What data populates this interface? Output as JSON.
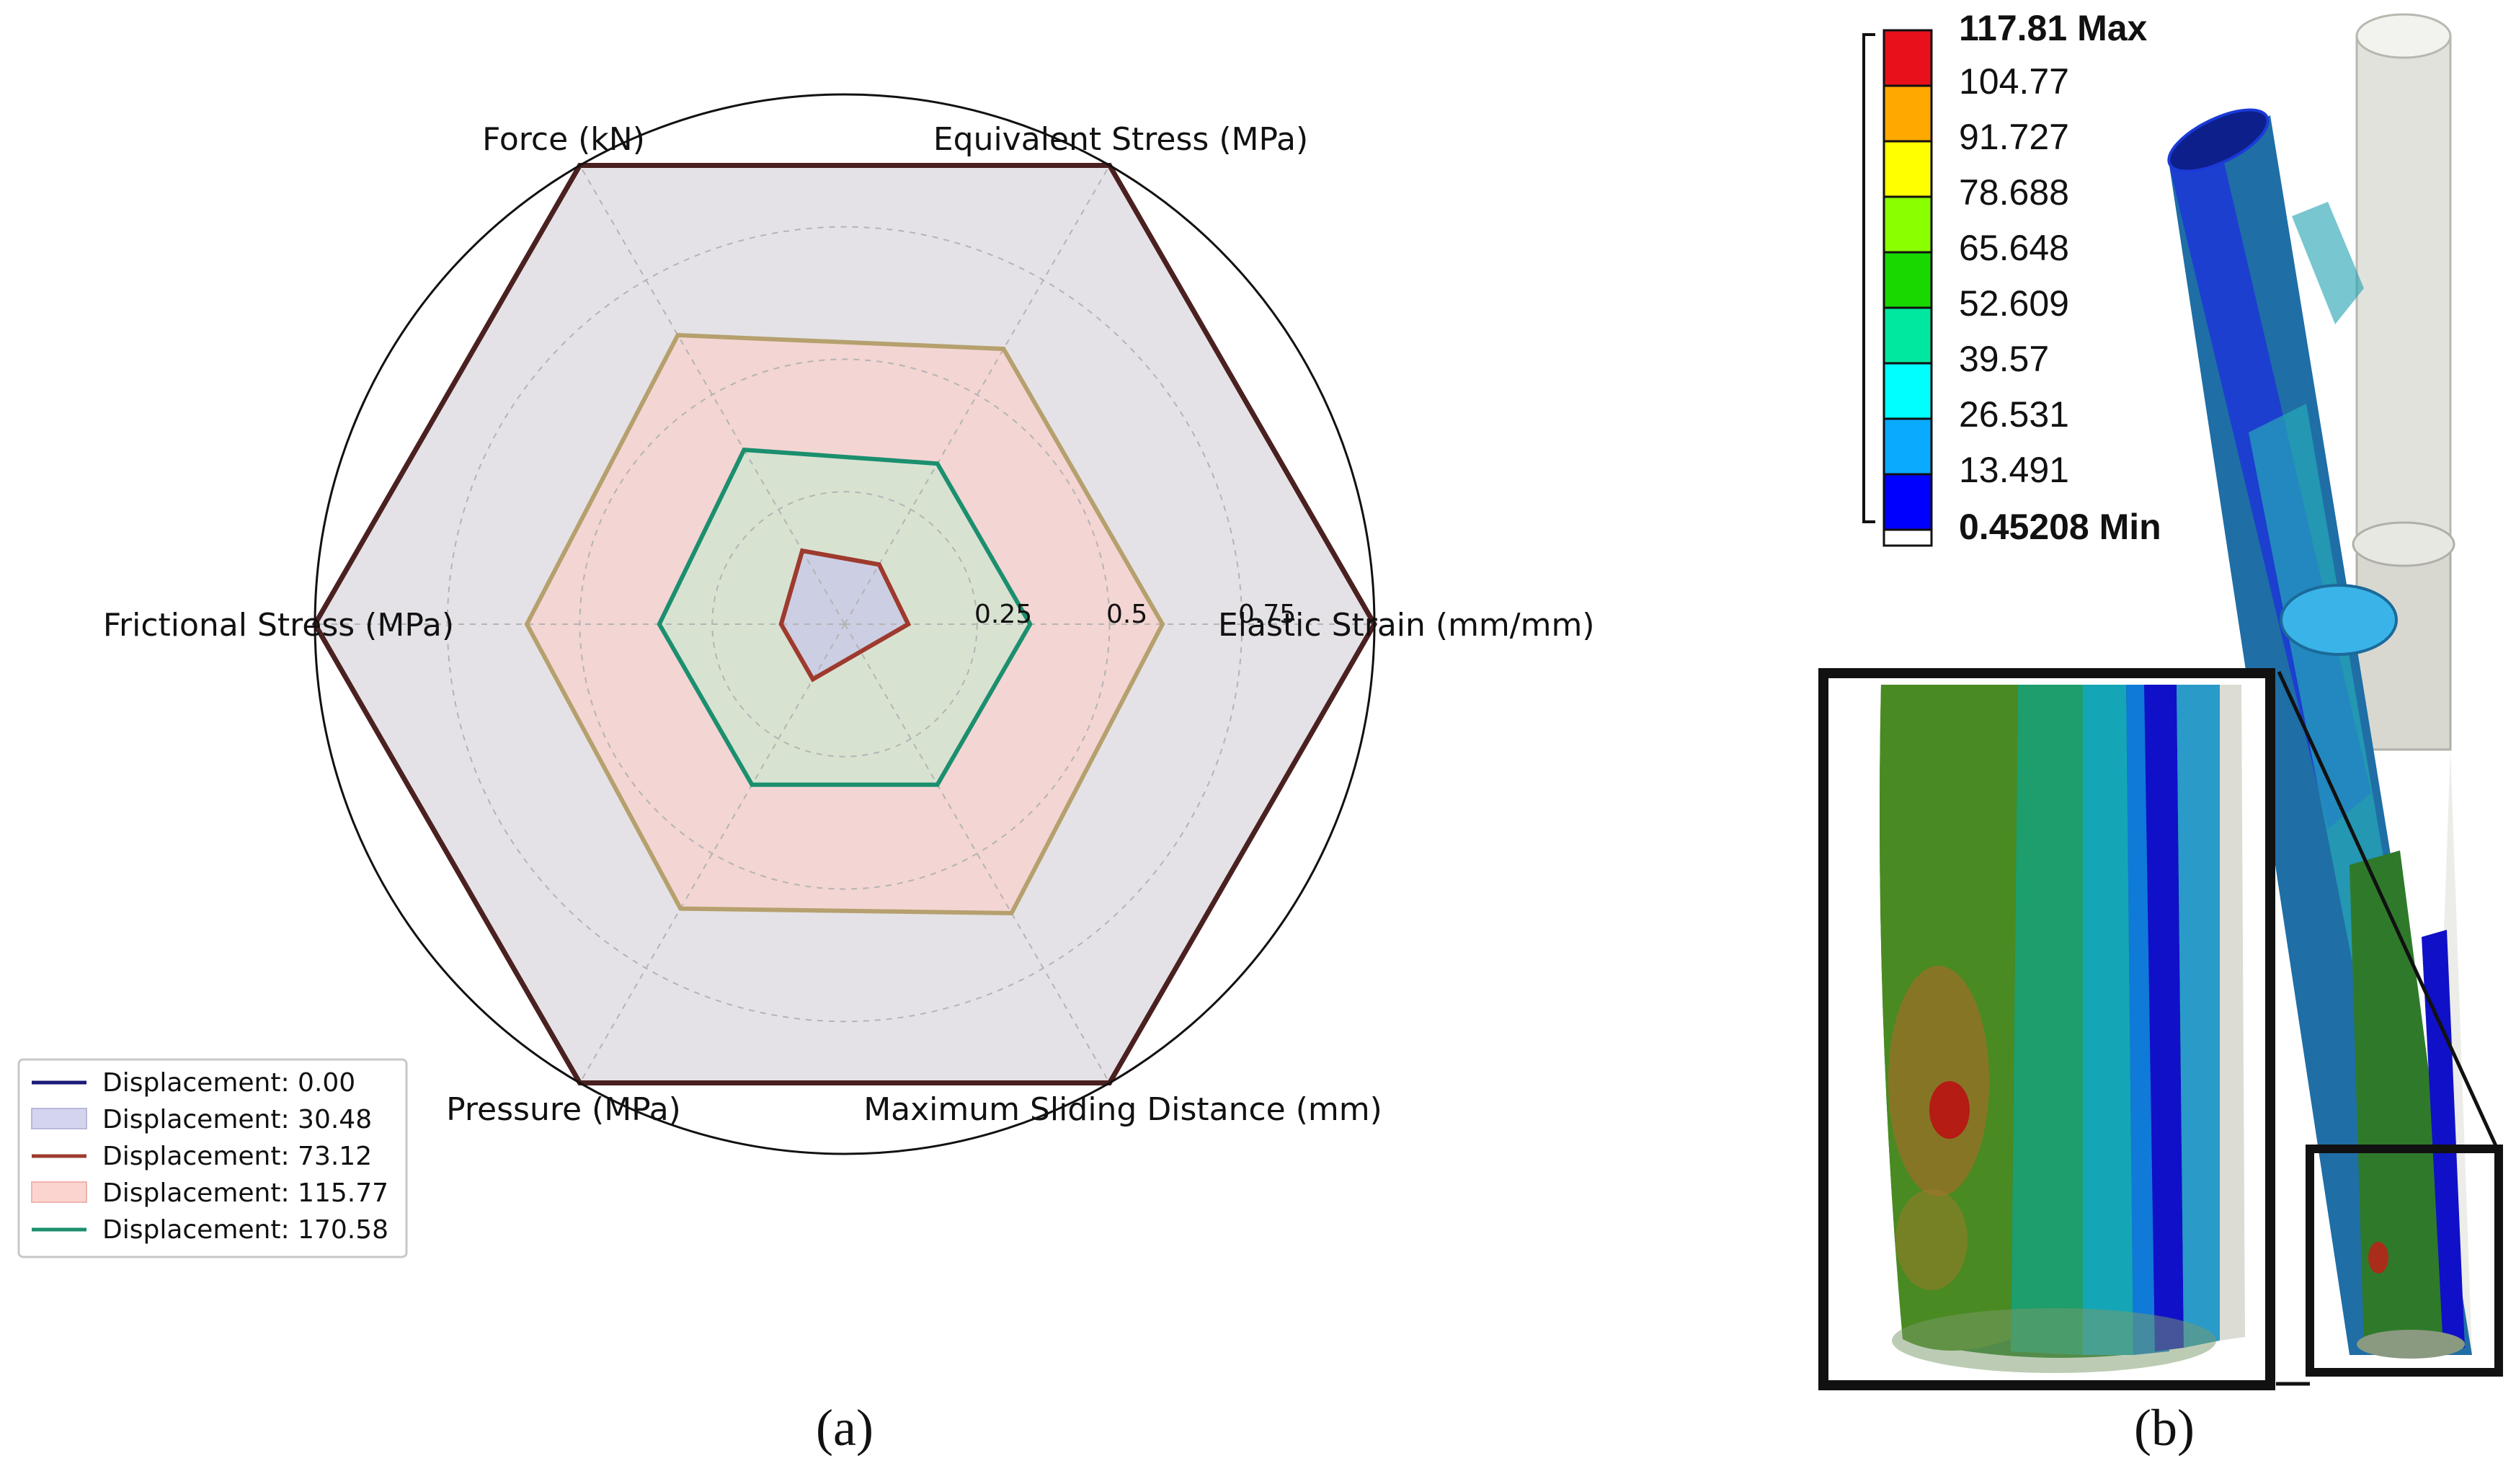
{
  "chart_data": [
    {
      "type": "radar",
      "axes": [
        "Force (kN)",
        "Equivalent Stress (MPa)",
        "Elastic Strain (mm/mm)",
        "Maximum Sliding Distance (mm)",
        "Pressure (MPa)",
        "Frictional Stress (MPa)"
      ],
      "rlim": [
        0,
        1
      ],
      "rticks": [
        0.25,
        0.5,
        0.75
      ],
      "rtick_labels": [
        "0.25",
        "0.5",
        "0.75"
      ],
      "grid": true,
      "legend_position": "bottom-left",
      "series": [
        {
          "name": "Displacement: 0.00",
          "values": [
            0,
            0,
            0,
            0,
            0,
            0
          ],
          "color": "#1a1a7a",
          "fill": false
        },
        {
          "name": "Displacement: 30.48",
          "values": [
            0.16,
            0.13,
            0.12,
            0.06,
            0.12,
            0.12
          ],
          "color": "#9e3a2e",
          "fill": true,
          "fill_color": "#c8c8e8"
        },
        {
          "name": "Displacement: 73.12",
          "values": [
            0.16,
            0.13,
            0.12,
            0.06,
            0.12,
            0.12
          ],
          "color": "#9e3a2e",
          "fill": false
        },
        {
          "name": "Displacement: 115.77",
          "values": [
            0.63,
            0.6,
            0.6,
            0.63,
            0.62,
            0.6
          ],
          "color": "#b5a06e",
          "fill": true,
          "fill_color": "#f8d0cc"
        },
        {
          "name": "Displacement: 170.58",
          "values": [
            0.38,
            0.35,
            0.35,
            0.35,
            0.35,
            0.35
          ],
          "color": "#1b8f6e",
          "fill": true,
          "fill_color": "#cfe6d0"
        },
        {
          "name": "",
          "values": [
            1,
            1,
            1,
            1,
            1,
            1
          ],
          "color": "#4a2020",
          "fill": true,
          "fill_color": "#e4e2e6"
        }
      ],
      "caption": "(a)"
    },
    {
      "type": "contour-legend",
      "levels": [
        "117.81 Max",
        "104.77",
        "91.727",
        "78.688",
        "65.648",
        "52.609",
        "39.57",
        "26.531",
        "13.491",
        "0.45208 Min"
      ],
      "colors": [
        "#e8101a",
        "#ffa800",
        "#ffff00",
        "#8aff00",
        "#18d800",
        "#00e8a0",
        "#00ffff",
        "#0aaaff",
        "#0000ff"
      ],
      "caption": "(b)"
    }
  ]
}
